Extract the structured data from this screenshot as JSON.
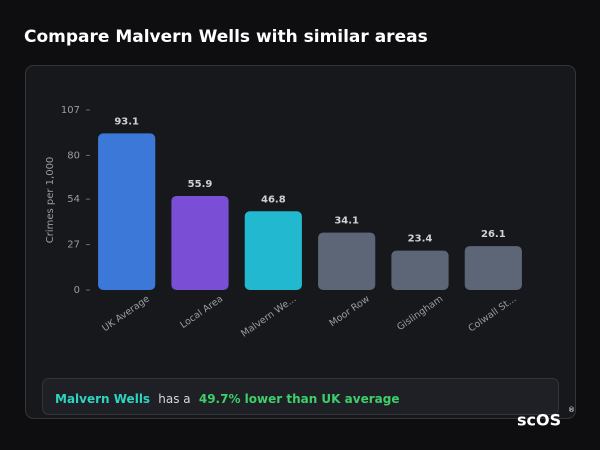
{
  "chart_data": {
    "type": "bar",
    "title": "Compare Malvern Wells with similar areas",
    "y_label": "Crimes per 1,000",
    "categories": [
      "UK Average",
      "Local Area",
      "Malvern We...",
      "Moor Row",
      "Gislingham",
      "Colwall St..."
    ],
    "values": [
      93.1,
      55.9,
      46.8,
      34.1,
      23.4,
      26.1
    ],
    "colors": [
      "#3b78d8",
      "#7a4fd6",
      "#22b8cf",
      "#5c6677",
      "#5c6677",
      "#5c6677"
    ],
    "ylim": [
      0,
      107
    ],
    "yticks": [
      0,
      27,
      54,
      80,
      107
    ],
    "grid": false
  },
  "summary": {
    "place": "Malvern Wells",
    "text": "has a",
    "highlight": "49.7% lower than UK average"
  },
  "logo": {
    "text": "scOS",
    "mark": "®"
  }
}
